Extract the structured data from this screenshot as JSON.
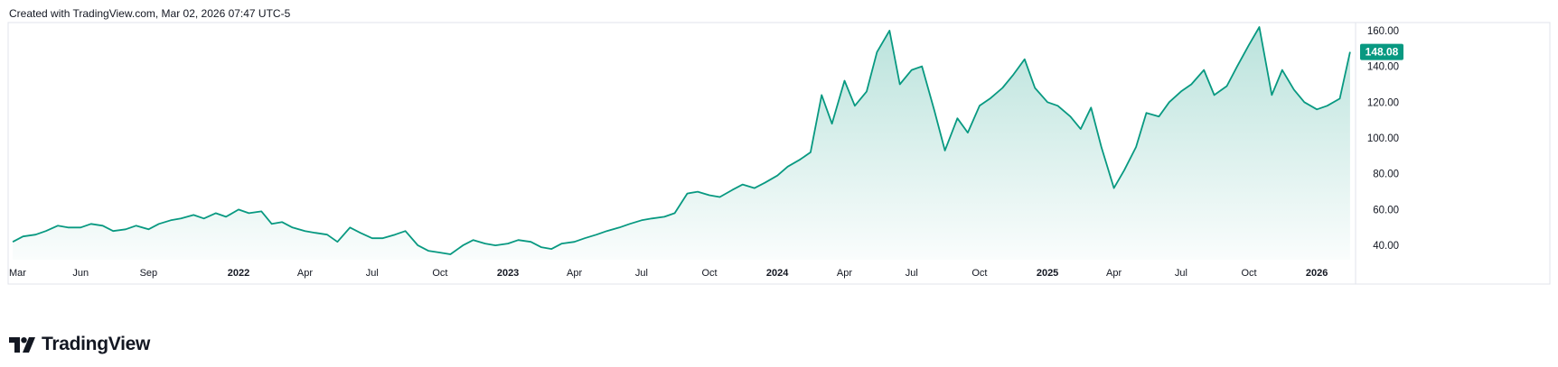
{
  "header": {
    "created_text": "Created with TradingView.com, Mar 02, 2026 07:47 UTC-5"
  },
  "brand": {
    "name": "TradingView",
    "logo_icon": "tradingview-logo-icon"
  },
  "colors": {
    "line": "#089981",
    "fill_top": "#089981",
    "price_badge_bg": "#089981",
    "price_badge_text": "#ffffff",
    "axis_text": "#131722",
    "frame": "#e0e3eb"
  },
  "chart_data": {
    "type": "area",
    "y_axis_position": "right",
    "grid": false,
    "ylim": [
      32,
      164
    ],
    "y_ticks": [
      "40.00",
      "60.00",
      "80.00",
      "100.00",
      "120.00",
      "140.00",
      "160.00"
    ],
    "last_price_label": "148.08",
    "last_price": 148.08,
    "x_ticks": [
      {
        "label": "Mar",
        "date": "2021-03-01",
        "bold": false
      },
      {
        "label": "Jun",
        "date": "2021-06-01",
        "bold": false
      },
      {
        "label": "Sep",
        "date": "2021-09-01",
        "bold": false
      },
      {
        "label": "2022",
        "date": "2022-01-01",
        "bold": true
      },
      {
        "label": "Apr",
        "date": "2022-04-01",
        "bold": false
      },
      {
        "label": "Jul",
        "date": "2022-07-01",
        "bold": false
      },
      {
        "label": "Oct",
        "date": "2022-10-01",
        "bold": false
      },
      {
        "label": "2023",
        "date": "2023-01-01",
        "bold": true
      },
      {
        "label": "Apr",
        "date": "2023-04-01",
        "bold": false
      },
      {
        "label": "Jul",
        "date": "2023-07-01",
        "bold": false
      },
      {
        "label": "Oct",
        "date": "2023-10-01",
        "bold": false
      },
      {
        "label": "2024",
        "date": "2024-01-01",
        "bold": true
      },
      {
        "label": "Apr",
        "date": "2024-04-01",
        "bold": false
      },
      {
        "label": "Jul",
        "date": "2024-07-01",
        "bold": false
      },
      {
        "label": "Oct",
        "date": "2024-10-01",
        "bold": false
      },
      {
        "label": "2025",
        "date": "2025-01-01",
        "bold": true
      },
      {
        "label": "Apr",
        "date": "2025-04-01",
        "bold": false
      },
      {
        "label": "Jul",
        "date": "2025-07-01",
        "bold": false
      },
      {
        "label": "Oct",
        "date": "2025-10-01",
        "bold": false
      },
      {
        "label": "2026",
        "date": "2026-01-01",
        "bold": true
      }
    ],
    "points": [
      [
        "2021-03-01",
        42
      ],
      [
        "2021-03-15",
        45
      ],
      [
        "2021-04-01",
        46
      ],
      [
        "2021-04-15",
        48
      ],
      [
        "2021-05-01",
        51
      ],
      [
        "2021-05-15",
        50
      ],
      [
        "2021-06-01",
        50
      ],
      [
        "2021-06-15",
        52
      ],
      [
        "2021-07-01",
        51
      ],
      [
        "2021-07-15",
        48
      ],
      [
        "2021-08-01",
        49
      ],
      [
        "2021-08-15",
        51
      ],
      [
        "2021-09-01",
        49
      ],
      [
        "2021-09-15",
        52
      ],
      [
        "2021-10-01",
        54
      ],
      [
        "2021-10-15",
        55
      ],
      [
        "2021-11-01",
        57
      ],
      [
        "2021-11-15",
        55
      ],
      [
        "2021-12-01",
        58
      ],
      [
        "2021-12-15",
        56
      ],
      [
        "2022-01-01",
        60
      ],
      [
        "2022-01-15",
        58
      ],
      [
        "2022-02-01",
        59
      ],
      [
        "2022-02-15",
        52
      ],
      [
        "2022-03-01",
        53
      ],
      [
        "2022-03-15",
        50
      ],
      [
        "2022-04-01",
        48
      ],
      [
        "2022-04-15",
        47
      ],
      [
        "2022-05-01",
        46
      ],
      [
        "2022-05-15",
        42
      ],
      [
        "2022-06-01",
        50
      ],
      [
        "2022-06-15",
        47
      ],
      [
        "2022-07-01",
        44
      ],
      [
        "2022-07-15",
        44
      ],
      [
        "2022-08-01",
        46
      ],
      [
        "2022-08-15",
        48
      ],
      [
        "2022-09-01",
        40
      ],
      [
        "2022-09-15",
        37
      ],
      [
        "2022-10-01",
        36
      ],
      [
        "2022-10-15",
        35
      ],
      [
        "2022-11-01",
        40
      ],
      [
        "2022-11-15",
        43
      ],
      [
        "2022-12-01",
        41
      ],
      [
        "2022-12-15",
        40
      ],
      [
        "2023-01-01",
        41
      ],
      [
        "2023-01-15",
        43
      ],
      [
        "2023-02-01",
        42
      ],
      [
        "2023-02-15",
        39
      ],
      [
        "2023-03-01",
        38
      ],
      [
        "2023-03-15",
        41
      ],
      [
        "2023-04-01",
        42
      ],
      [
        "2023-04-15",
        44
      ],
      [
        "2023-05-01",
        46
      ],
      [
        "2023-05-15",
        48
      ],
      [
        "2023-06-01",
        50
      ],
      [
        "2023-06-15",
        52
      ],
      [
        "2023-07-01",
        54
      ],
      [
        "2023-07-15",
        55
      ],
      [
        "2023-08-01",
        56
      ],
      [
        "2023-08-15",
        58
      ],
      [
        "2023-09-01",
        69
      ],
      [
        "2023-09-15",
        70
      ],
      [
        "2023-10-01",
        68
      ],
      [
        "2023-10-15",
        67
      ],
      [
        "2023-11-01",
        71
      ],
      [
        "2023-11-15",
        74
      ],
      [
        "2023-12-01",
        72
      ],
      [
        "2023-12-15",
        75
      ],
      [
        "2024-01-01",
        79
      ],
      [
        "2024-01-15",
        84
      ],
      [
        "2024-02-01",
        88
      ],
      [
        "2024-02-15",
        92
      ],
      [
        "2024-03-01",
        124
      ],
      [
        "2024-03-15",
        108
      ],
      [
        "2024-04-01",
        132
      ],
      [
        "2024-04-15",
        118
      ],
      [
        "2024-05-01",
        126
      ],
      [
        "2024-05-15",
        148
      ],
      [
        "2024-06-01",
        160
      ],
      [
        "2024-06-15",
        130
      ],
      [
        "2024-07-01",
        138
      ],
      [
        "2024-07-15",
        140
      ],
      [
        "2024-08-01",
        115
      ],
      [
        "2024-08-15",
        93
      ],
      [
        "2024-09-01",
        111
      ],
      [
        "2024-09-15",
        103
      ],
      [
        "2024-10-01",
        118
      ],
      [
        "2024-10-15",
        122
      ],
      [
        "2024-11-01",
        128
      ],
      [
        "2024-11-15",
        135
      ],
      [
        "2024-12-01",
        144
      ],
      [
        "2024-12-15",
        128
      ],
      [
        "2025-01-01",
        120
      ],
      [
        "2025-01-15",
        118
      ],
      [
        "2025-02-01",
        112
      ],
      [
        "2025-02-15",
        105
      ],
      [
        "2025-03-01",
        117
      ],
      [
        "2025-03-15",
        95
      ],
      [
        "2025-04-01",
        72
      ],
      [
        "2025-04-15",
        82
      ],
      [
        "2025-05-01",
        95
      ],
      [
        "2025-05-15",
        114
      ],
      [
        "2025-06-01",
        112
      ],
      [
        "2025-06-15",
        120
      ],
      [
        "2025-07-01",
        126
      ],
      [
        "2025-07-15",
        130
      ],
      [
        "2025-08-01",
        138
      ],
      [
        "2025-08-15",
        124
      ],
      [
        "2025-09-01",
        129
      ],
      [
        "2025-09-15",
        140
      ],
      [
        "2025-10-01",
        152
      ],
      [
        "2025-10-15",
        162
      ],
      [
        "2025-11-01",
        124
      ],
      [
        "2025-11-15",
        138
      ],
      [
        "2025-12-01",
        127
      ],
      [
        "2025-12-15",
        120
      ],
      [
        "2026-01-01",
        116
      ],
      [
        "2026-01-15",
        118
      ],
      [
        "2026-02-01",
        122
      ],
      [
        "2026-02-15",
        148.08
      ]
    ]
  }
}
